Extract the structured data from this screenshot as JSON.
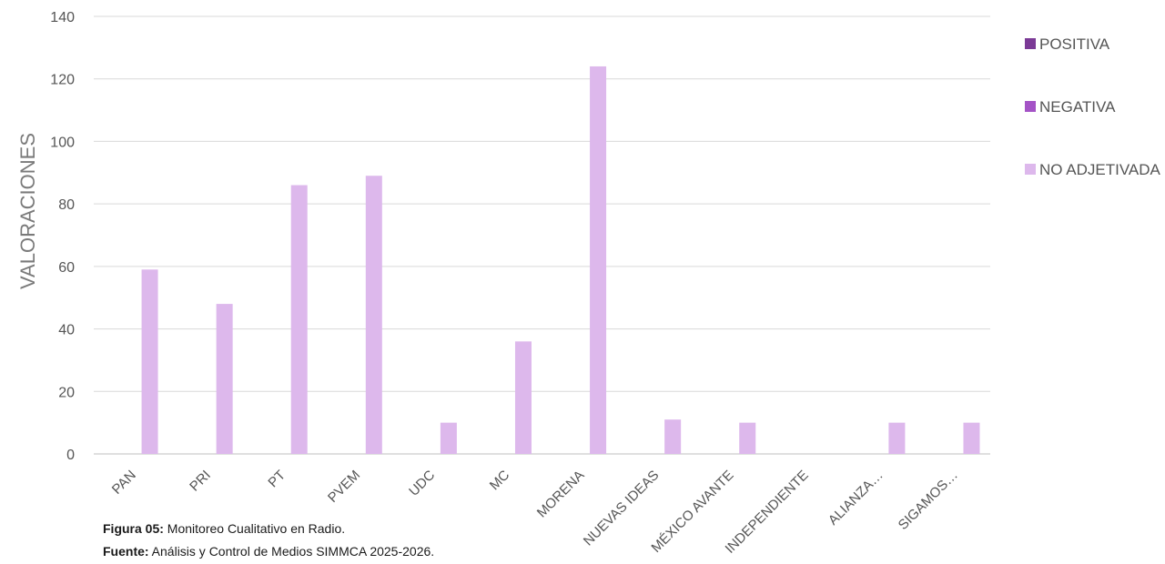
{
  "chart_data": {
    "type": "bar",
    "ylabel": "VALORACIONES",
    "xlabel": "",
    "ylim": [
      0,
      140
    ],
    "yticks": [
      0,
      20,
      40,
      60,
      80,
      100,
      120,
      140
    ],
    "grid": true,
    "legend_position": "right",
    "categories": [
      "PAN",
      "PRI",
      "PT",
      "PVEM",
      "UDC",
      "MC",
      "MORENA",
      "NUEVAS IDEAS",
      "MÉXICO AVANTE",
      "INDEPENDIENTE",
      "ALIANZA…",
      "SIGAMOS…"
    ],
    "series": [
      {
        "name": "POSITIVA",
        "color": "#7B3A96",
        "values": [
          0,
          0,
          0,
          0,
          0,
          0,
          0,
          0,
          0,
          0,
          0,
          0
        ]
      },
      {
        "name": "NEGATIVA",
        "color": "#A453C6",
        "values": [
          0,
          0,
          0,
          0,
          0,
          0,
          0,
          0,
          0,
          0,
          0,
          0
        ]
      },
      {
        "name": "NO ADJETIVADA",
        "color": "#DDB8EC",
        "values": [
          59,
          48,
          86,
          89,
          10,
          36,
          124,
          11,
          10,
          0,
          10,
          10
        ]
      }
    ]
  },
  "caption": {
    "figure_label": "Figura 05:",
    "figure_text": " Monitoreo Cualitativo en Radio.",
    "source_label": "Fuente:",
    "source_text": " Análisis y Control de Medios SIMMCA 2025-2026."
  }
}
